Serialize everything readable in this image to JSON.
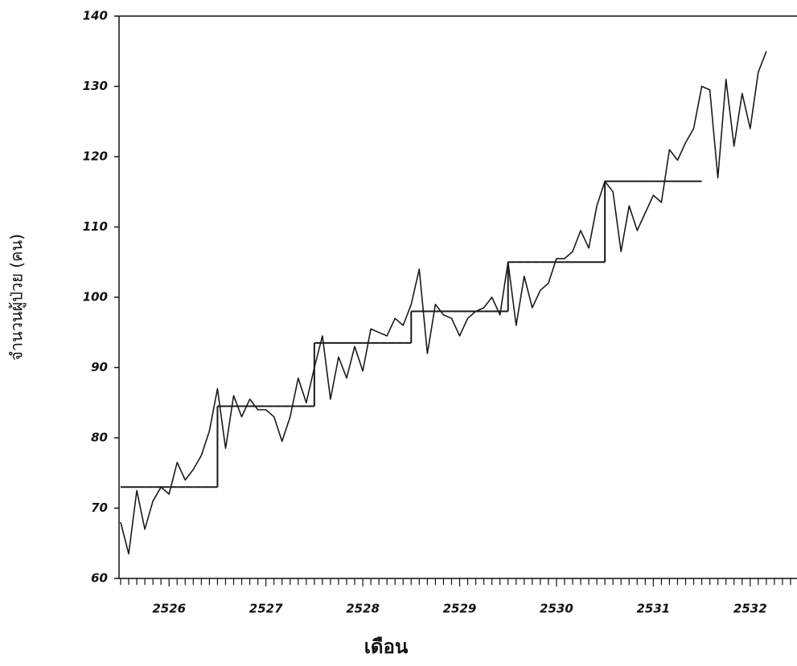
{
  "chart_data": {
    "type": "line",
    "y_label": "จำนวนผู้ป่วย (คน)",
    "x_label": "เดือน",
    "categories": [
      null,
      null,
      null,
      null,
      null,
      null,
      "2526",
      null,
      null,
      null,
      null,
      null,
      null,
      null,
      null,
      null,
      null,
      null,
      "2527",
      null,
      null,
      null,
      null,
      null,
      null,
      null,
      null,
      null,
      null,
      null,
      "2528",
      null,
      null,
      null,
      null,
      null,
      null,
      null,
      null,
      null,
      null,
      null,
      "2529",
      null,
      null,
      null,
      null,
      null,
      null,
      null,
      null,
      null,
      null,
      null,
      "2530",
      null,
      null,
      null,
      null,
      null,
      null,
      null,
      null,
      null,
      null,
      null,
      "2531",
      null,
      null,
      null,
      null,
      null,
      null,
      null,
      null,
      null,
      null,
      null,
      "2532",
      null,
      null,
      null,
      null,
      null
    ],
    "series": [
      {
        "color": "#1a1a1a",
        "style": "line",
        "values": [
          68,
          63.5,
          72.5,
          67,
          71,
          73,
          72,
          76.5,
          74,
          75.5,
          77.5,
          81,
          87,
          78.5,
          86,
          83,
          85.5,
          84,
          84,
          83,
          79.5,
          83,
          88.5,
          85,
          90,
          94.5,
          85.5,
          91.5,
          88.5,
          93,
          89.5,
          95.5,
          95,
          94.5,
          97,
          96,
          99,
          104,
          92,
          99,
          97.5,
          97,
          94.5,
          97,
          98,
          98.5,
          100,
          97.5,
          105,
          96,
          103,
          98.5,
          101,
          102,
          105.5,
          105.5,
          106.5,
          109.5,
          107,
          113,
          116.5,
          115,
          106.5,
          113,
          109.5,
          112,
          114.5,
          113.5,
          121,
          119.5,
          122,
          124,
          130,
          129.5,
          117,
          131,
          121.5,
          129,
          124,
          132,
          135,
          null,
          null,
          null
        ]
      },
      {
        "color": "#1a1a1a",
        "style": "step",
        "values": [
          73,
          73,
          73,
          73,
          73,
          73,
          73,
          73,
          73,
          73,
          73,
          73,
          84.5,
          84.5,
          84.5,
          84.5,
          84.5,
          84.5,
          84.5,
          84.5,
          84.5,
          84.5,
          84.5,
          84.5,
          93.5,
          93.5,
          93.5,
          93.5,
          93.5,
          93.5,
          93.5,
          93.5,
          93.5,
          93.5,
          93.5,
          93.5,
          98,
          98,
          98,
          98,
          98,
          98,
          98,
          98,
          98,
          98,
          98,
          98,
          105,
          105,
          105,
          105,
          105,
          105,
          105,
          105,
          105,
          105,
          105,
          105,
          116.5,
          116.5,
          116.5,
          116.5,
          116.5,
          116.5,
          116.5,
          116.5,
          116.5,
          116.5,
          116.5,
          116.5,
          null,
          null,
          null,
          null,
          null,
          null,
          null,
          null,
          null,
          null,
          null,
          null
        ]
      }
    ],
    "ylim": [
      60,
      140
    ],
    "yticks": [
      60,
      70,
      80,
      90,
      100,
      110,
      120,
      130,
      140
    ]
  }
}
